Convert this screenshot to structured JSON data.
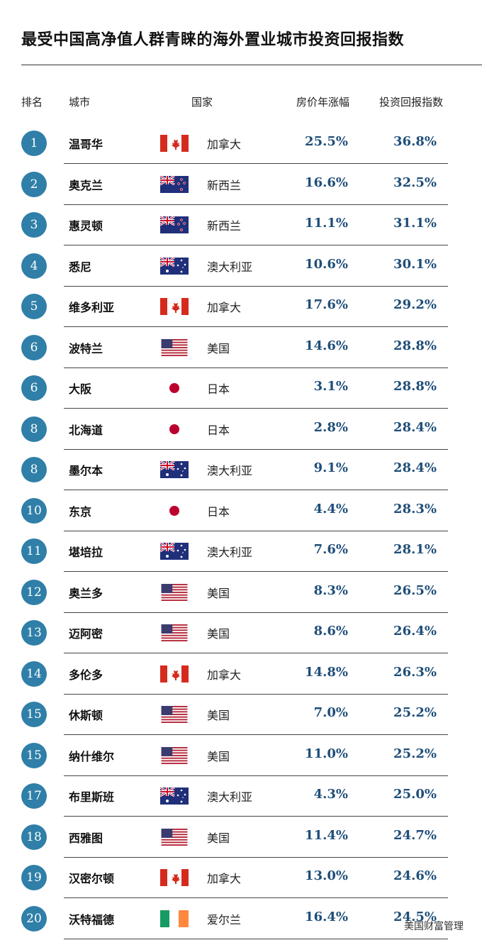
{
  "header": {
    "title": "最受中国高净值人群青睐的海外置业城市投资回报指数"
  },
  "table": {
    "columns": [
      "排名",
      "城市",
      "国家",
      "房价年涨幅",
      "投资回报指数"
    ],
    "rows": [
      [
        "1",
        "温哥华",
        "加拿大",
        "25.5%",
        "36.8%"
      ],
      [
        "2",
        "奥克兰",
        "新西兰",
        "16.6%",
        "32.5%"
      ],
      [
        "3",
        "惠灵顿",
        "新西兰",
        "11.1%",
        "31.1%"
      ],
      [
        "4",
        "悉尼",
        "澳大利亚",
        "10.6%",
        "30.1%"
      ],
      [
        "5",
        "维多利亚",
        "加拿大",
        "17.6%",
        "29.2%"
      ],
      [
        "6",
        "波特兰",
        "美国",
        "14.6%",
        "28.8%"
      ],
      [
        "6",
        "大阪",
        "日本",
        "3.1%",
        "28.8%"
      ],
      [
        "8",
        "北海道",
        "日本",
        "2.8%",
        "28.4%"
      ],
      [
        "8",
        "墨尔本",
        "澳大利亚",
        "9.1%",
        "28.4%"
      ],
      [
        "10",
        "东京",
        "日本",
        "4.4%",
        "28.3%"
      ],
      [
        "11",
        "堪培拉",
        "澳大利亚",
        "7.6%",
        "28.1%"
      ],
      [
        "12",
        "奥兰多",
        "美国",
        "8.3%",
        "26.5%"
      ],
      [
        "13",
        "迈阿密",
        "美国",
        "8.6%",
        "26.4%"
      ],
      [
        "14",
        "多伦多",
        "加拿大",
        "14.8%",
        "26.3%"
      ],
      [
        "15",
        "休斯顿",
        "美国",
        "7.0%",
        "25.2%"
      ],
      [
        "15",
        "纳什维尔",
        "美国",
        "11.0%",
        "25.2%"
      ],
      [
        "17",
        "布里斯班",
        "澳大利亚",
        "4.3%",
        "25.0%"
      ],
      [
        "18",
        "西雅图",
        "美国",
        "11.4%",
        "24.7%"
      ],
      [
        "19",
        "汉密尔顿",
        "加拿大",
        "13.0%",
        "24.6%"
      ],
      [
        "20",
        "沃特福德",
        "爱尔兰",
        "16.4%",
        "24.5%"
      ]
    ]
  },
  "watermark": "美国财富管理"
}
